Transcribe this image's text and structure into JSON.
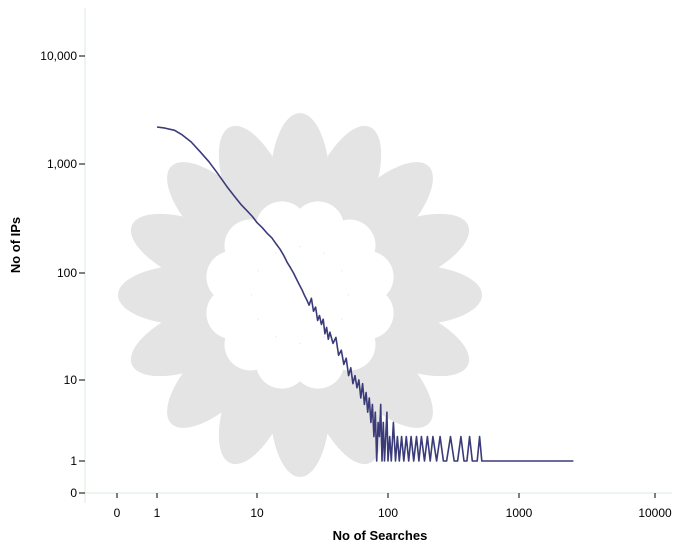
{
  "chart_data": {
    "type": "line",
    "xlabel": "No of Searches",
    "ylabel": "No of IPs",
    "x_scale": "log",
    "y_scale": "log",
    "x_ticks": [
      "0",
      "1",
      "10",
      "100",
      "1000",
      "10000"
    ],
    "y_ticks": [
      "0",
      "1",
      "10",
      "100",
      "1,000",
      "10,000"
    ],
    "series_color": "#3b3b7a",
    "grid": false,
    "series": [
      {
        "points": [
          [
            1,
            2200
          ],
          [
            1.2,
            2150
          ],
          [
            1.5,
            2050
          ],
          [
            1.8,
            1850
          ],
          [
            2.2,
            1600
          ],
          [
            2.7,
            1300
          ],
          [
            3.3,
            1050
          ],
          [
            4,
            830
          ],
          [
            5,
            620
          ],
          [
            6,
            500
          ],
          [
            7,
            420
          ],
          [
            8,
            370
          ],
          [
            9,
            330
          ],
          [
            10,
            290
          ],
          [
            11,
            260
          ],
          [
            12,
            230
          ],
          [
            13,
            210
          ],
          [
            14,
            185
          ],
          [
            15,
            165
          ],
          [
            16,
            145
          ],
          [
            17,
            125
          ],
          [
            18,
            112
          ],
          [
            19,
            100
          ],
          [
            20,
            88
          ],
          [
            21,
            78
          ],
          [
            22,
            70
          ],
          [
            23,
            62
          ],
          [
            24,
            56
          ],
          [
            25,
            50
          ],
          [
            26,
            58
          ],
          [
            27,
            44
          ],
          [
            28,
            48
          ],
          [
            29,
            36
          ],
          [
            30,
            40
          ],
          [
            31,
            33
          ],
          [
            32,
            37
          ],
          [
            33,
            27
          ],
          [
            34,
            31
          ],
          [
            35,
            24
          ],
          [
            36,
            28
          ],
          [
            38,
            22
          ],
          [
            40,
            25
          ],
          [
            42,
            17
          ],
          [
            44,
            19
          ],
          [
            46,
            14
          ],
          [
            48,
            16
          ],
          [
            50,
            11
          ],
          [
            52,
            13
          ],
          [
            54,
            9
          ],
          [
            56,
            11
          ],
          [
            58,
            8
          ],
          [
            60,
            10
          ],
          [
            62,
            6
          ],
          [
            64,
            9
          ],
          [
            66,
            5
          ],
          [
            68,
            7
          ],
          [
            70,
            4
          ],
          [
            72,
            6
          ],
          [
            74,
            3
          ],
          [
            76,
            5
          ],
          [
            78,
            2
          ],
          [
            80,
            4
          ],
          [
            82,
            1
          ],
          [
            84,
            3
          ],
          [
            86,
            2
          ],
          [
            88,
            5
          ],
          [
            90,
            1
          ],
          [
            92,
            3
          ],
          [
            94,
            1
          ],
          [
            96,
            2
          ],
          [
            98,
            4
          ],
          [
            100,
            1
          ],
          [
            103,
            2
          ],
          [
            106,
            1
          ],
          [
            110,
            3
          ],
          [
            114,
            1
          ],
          [
            118,
            2
          ],
          [
            122,
            1
          ],
          [
            127,
            2
          ],
          [
            132,
            1
          ],
          [
            138,
            2
          ],
          [
            144,
            1
          ],
          [
            150,
            2
          ],
          [
            157,
            1
          ],
          [
            165,
            2
          ],
          [
            172,
            1
          ],
          [
            180,
            2
          ],
          [
            190,
            1
          ],
          [
            200,
            2
          ],
          [
            210,
            1
          ],
          [
            220,
            2
          ],
          [
            235,
            1
          ],
          [
            250,
            2
          ],
          [
            265,
            1
          ],
          [
            280,
            1
          ],
          [
            300,
            2
          ],
          [
            320,
            1
          ],
          [
            340,
            1
          ],
          [
            360,
            2
          ],
          [
            380,
            1
          ],
          [
            400,
            1
          ],
          [
            420,
            2
          ],
          [
            440,
            1
          ],
          [
            480,
            1
          ],
          [
            500,
            2
          ],
          [
            520,
            1
          ],
          [
            600,
            1
          ],
          [
            700,
            1
          ],
          [
            800,
            1
          ],
          [
            1000,
            1
          ],
          [
            1500,
            1
          ],
          [
            2600,
            1
          ]
        ]
      }
    ]
  }
}
